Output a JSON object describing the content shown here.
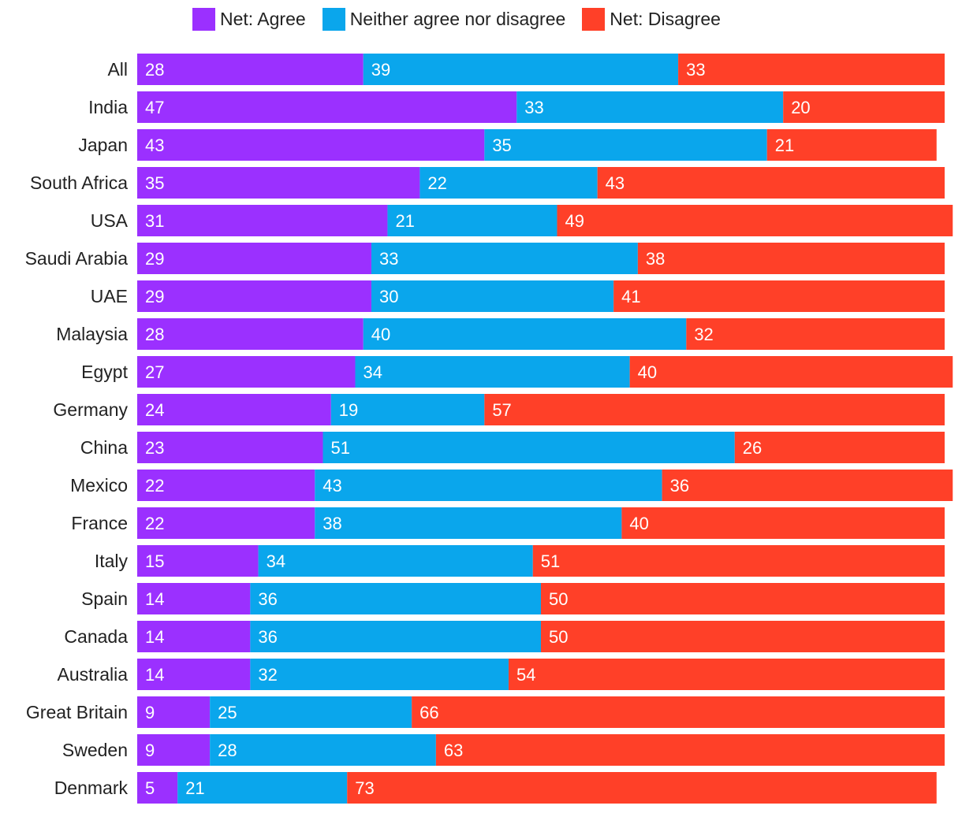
{
  "chart_data": {
    "type": "bar",
    "orientation": "horizontal",
    "stacked": true,
    "legend_position": "top",
    "categories": [
      "All",
      "India",
      "Japan",
      "South Africa",
      "USA",
      "Saudi Arabia",
      "UAE",
      "Malaysia",
      "Egypt",
      "Germany",
      "China",
      "Mexico",
      "France",
      "Italy",
      "Spain",
      "Canada",
      "Australia",
      "Great Britain",
      "Sweden",
      "Denmark"
    ],
    "series": [
      {
        "name": "Net: Agree",
        "color": "#9b30ff",
        "values": [
          28,
          47,
          43,
          35,
          31,
          29,
          29,
          28,
          27,
          24,
          23,
          22,
          22,
          15,
          14,
          14,
          14,
          9,
          9,
          5
        ]
      },
      {
        "name": "Neither agree nor disagree",
        "color": "#0aa6ec",
        "values": [
          39,
          33,
          35,
          22,
          21,
          33,
          30,
          40,
          34,
          19,
          51,
          43,
          38,
          34,
          36,
          36,
          32,
          25,
          28,
          21
        ]
      },
      {
        "name": "Net: Disagree",
        "color": "#ff4028",
        "values": [
          33,
          20,
          21,
          43,
          49,
          38,
          41,
          32,
          40,
          57,
          26,
          36,
          40,
          51,
          50,
          50,
          54,
          66,
          63,
          73
        ]
      }
    ]
  }
}
